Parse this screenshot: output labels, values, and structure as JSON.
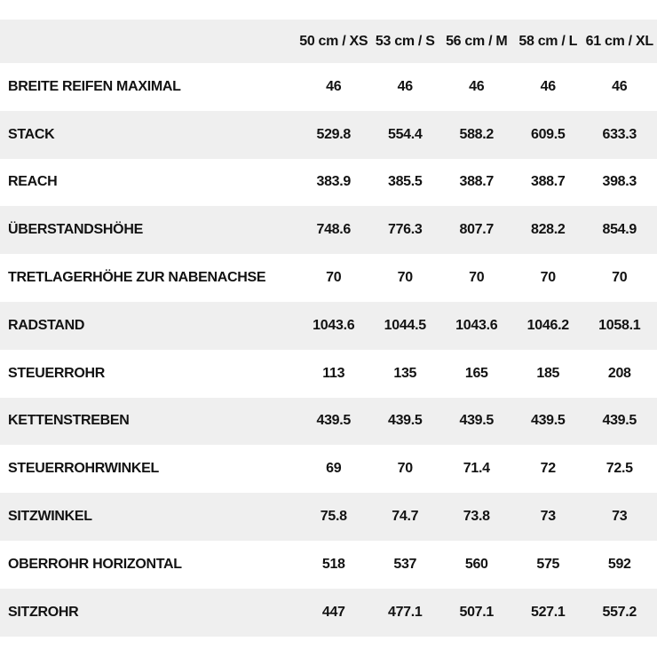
{
  "colors": {
    "background": "#ffffff",
    "row_alt_bg": "#efefef",
    "text": "#121212"
  },
  "chart_data": {
    "type": "table",
    "title": "",
    "columns": [
      "50 cm / XS",
      "53 cm / S",
      "56 cm / M",
      "58 cm / L",
      "61 cm / XL"
    ],
    "rows": [
      {
        "label": "BREITE REIFEN MAXIMAL",
        "values": [
          "46",
          "46",
          "46",
          "46",
          "46"
        ]
      },
      {
        "label": "STACK",
        "values": [
          "529.8",
          "554.4",
          "588.2",
          "609.5",
          "633.3"
        ]
      },
      {
        "label": "REACH",
        "values": [
          "383.9",
          "385.5",
          "388.7",
          "388.7",
          "398.3"
        ]
      },
      {
        "label": "ÜBERSTANDSHÖHE",
        "values": [
          "748.6",
          "776.3",
          "807.7",
          "828.2",
          "854.9"
        ]
      },
      {
        "label": "TRETLAGERHÖHE ZUR NABENACHSE",
        "values": [
          "70",
          "70",
          "70",
          "70",
          "70"
        ]
      },
      {
        "label": "RADSTAND",
        "values": [
          "1043.6",
          "1044.5",
          "1043.6",
          "1046.2",
          "1058.1"
        ]
      },
      {
        "label": "STEUERROHR",
        "values": [
          "113",
          "135",
          "165",
          "185",
          "208"
        ]
      },
      {
        "label": "KETTENSTREBEN",
        "values": [
          "439.5",
          "439.5",
          "439.5",
          "439.5",
          "439.5"
        ]
      },
      {
        "label": "STEUERROHRWINKEL",
        "values": [
          "69",
          "70",
          "71.4",
          "72",
          "72.5"
        ]
      },
      {
        "label": "SITZWINKEL",
        "values": [
          "75.8",
          "74.7",
          "73.8",
          "73",
          "73"
        ]
      },
      {
        "label": "OBERROHR HORIZONTAL",
        "values": [
          "518",
          "537",
          "560",
          "575",
          "592"
        ]
      },
      {
        "label": "SITZROHR",
        "values": [
          "447",
          "477.1",
          "507.1",
          "527.1",
          "557.2"
        ]
      }
    ]
  }
}
